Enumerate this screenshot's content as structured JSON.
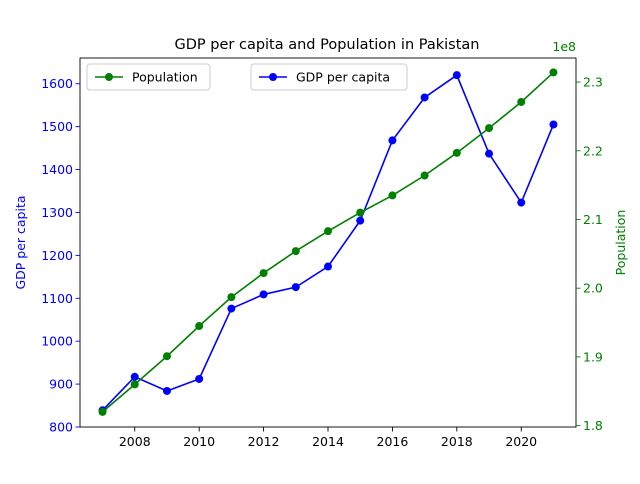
{
  "chart_data": {
    "type": "line",
    "title": "GDP per capita and Population in Pakistan",
    "xlabel": "",
    "x": [
      2007,
      2008,
      2009,
      2010,
      2011,
      2012,
      2013,
      2014,
      2015,
      2016,
      2017,
      2018,
      2019,
      2020,
      2021
    ],
    "xlim": [
      2006.3,
      2021.7
    ],
    "xticks": [
      2008,
      2010,
      2012,
      2014,
      2016,
      2018,
      2020
    ],
    "series": [
      {
        "name": "GDP per capita",
        "axis": "left",
        "color": "#0000ff",
        "marker": "circle",
        "values": [
          839,
          917,
          884,
          912,
          1076,
          1109,
          1126,
          1174,
          1281,
          1468,
          1568,
          1620,
          1437,
          1323,
          1505
        ]
      },
      {
        "name": "Population",
        "axis": "right",
        "color": "#008000",
        "marker": "circle",
        "values": [
          182000000,
          186000000,
          190100000,
          194500000,
          198700000,
          202200000,
          205400000,
          208300000,
          211000000,
          213500000,
          216400000,
          219700000,
          223300000,
          227100000,
          231400000
        ]
      }
    ],
    "yleft": {
      "label": "GDP per capita",
      "color": "#0000ff",
      "lim": [
        800,
        1660
      ],
      "ticks": [
        800,
        900,
        1000,
        1100,
        1200,
        1300,
        1400,
        1500,
        1600
      ]
    },
    "yright": {
      "label": "Population",
      "color": "#008000",
      "lim": [
        179800000,
        233500000
      ],
      "ticks": [
        180000000,
        190000000,
        200000000,
        210000000,
        220000000,
        230000000
      ],
      "tick_labels": [
        "1.8",
        "1.9",
        "2.0",
        "2.1",
        "2.2",
        "2.3"
      ],
      "offset_label": "1e8"
    },
    "legends": [
      {
        "location": "upper left",
        "entries": [
          "Population"
        ]
      },
      {
        "location": "upper center",
        "entries": [
          "GDP per capita"
        ]
      }
    ],
    "grid": false
  }
}
